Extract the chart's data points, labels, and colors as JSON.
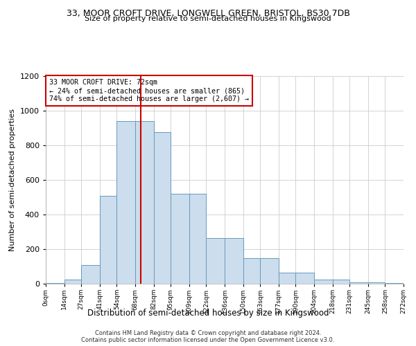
{
  "title_line1": "33, MOOR CROFT DRIVE, LONGWELL GREEN, BRISTOL, BS30 7DB",
  "title_line2": "Size of property relative to semi-detached houses in Kingswood",
  "xlabel": "Distribution of semi-detached houses by size in Kingswood",
  "ylabel": "Number of semi-detached properties",
  "annotation_title": "33 MOOR CROFT DRIVE: 72sqm",
  "annotation_smaller": "← 24% of semi-detached houses are smaller (865)",
  "annotation_larger": "74% of semi-detached houses are larger (2,607) →",
  "property_size": 72,
  "bin_edges": [
    0,
    14,
    27,
    41,
    54,
    68,
    82,
    95,
    109,
    122,
    136,
    150,
    163,
    177,
    190,
    204,
    218,
    231,
    245,
    258,
    272
  ],
  "bin_counts": [
    5,
    25,
    110,
    510,
    940,
    940,
    875,
    520,
    520,
    265,
    265,
    150,
    150,
    65,
    65,
    25,
    25,
    10,
    10,
    5
  ],
  "bar_facecolor": "#ccdded",
  "bar_edgecolor": "#6699bb",
  "vline_color": "#cc0000",
  "vline_x": 72,
  "annotation_box_edgecolor": "#cc0000",
  "grid_color": "#cccccc",
  "ylim": [
    0,
    1200
  ],
  "yticks": [
    0,
    200,
    400,
    600,
    800,
    1000,
    1200
  ],
  "footer1": "Contains HM Land Registry data © Crown copyright and database right 2024.",
  "footer2": "Contains public sector information licensed under the Open Government Licence v3.0."
}
